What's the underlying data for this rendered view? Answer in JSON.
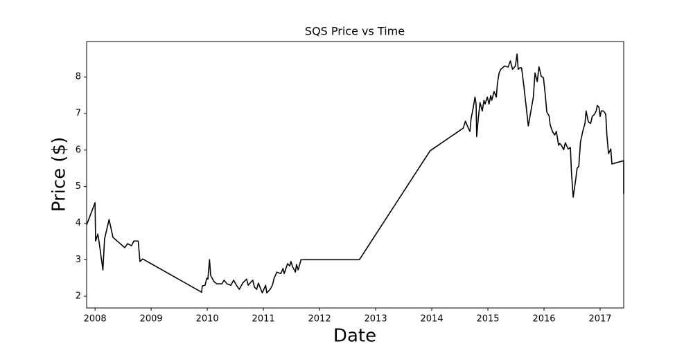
{
  "chart_data": {
    "type": "line",
    "title": "SQS Price vs Time",
    "x_label": "Date",
    "y_label": "Price ($)",
    "color": "#000000",
    "x": [
      2007.85,
      2008.0,
      2008.01,
      2008.05,
      2008.07,
      2008.14,
      2008.17,
      2008.25,
      2008.32,
      2008.53,
      2008.58,
      2008.65,
      2008.69,
      2008.77,
      2008.8,
      2008.85,
      2009.9,
      2009.91,
      2009.96,
      2009.99,
      2010.01,
      2010.04,
      2010.06,
      2010.12,
      2010.17,
      2010.26,
      2010.3,
      2010.35,
      2010.42,
      2010.47,
      2010.52,
      2010.57,
      2010.63,
      2010.7,
      2010.73,
      2010.75,
      2010.81,
      2010.84,
      2010.88,
      2010.91,
      2010.98,
      2011.04,
      2011.06,
      2011.12,
      2011.16,
      2011.19,
      2011.24,
      2011.31,
      2011.35,
      2011.37,
      2011.41,
      2011.43,
      2011.47,
      2011.49,
      2011.52,
      2011.57,
      2011.59,
      2011.62,
      2011.67,
      2011.69,
      2012.71,
      2013.97,
      2014.56,
      2014.58,
      2014.6,
      2014.64,
      2014.68,
      2014.7,
      2014.74,
      2014.77,
      2014.79,
      2014.8,
      2014.83,
      2014.86,
      2014.9,
      2014.93,
      2014.95,
      2014.99,
      2015.02,
      2015.05,
      2015.07,
      2015.11,
      2015.15,
      2015.17,
      2015.2,
      2015.23,
      2015.3,
      2015.36,
      2015.4,
      2015.44,
      2015.49,
      2015.52,
      2015.54,
      2015.57,
      2015.6,
      2015.64,
      2015.72,
      2015.81,
      2015.84,
      2015.88,
      2015.91,
      2015.95,
      2015.99,
      2016.02,
      2016.05,
      2016.09,
      2016.11,
      2016.15,
      2016.19,
      2016.22,
      2016.26,
      2016.28,
      2016.31,
      2016.35,
      2016.38,
      2016.43,
      2016.47,
      2016.49,
      2016.52,
      2016.56,
      2016.59,
      2016.62,
      2016.65,
      2016.69,
      2016.73,
      2016.75,
      2016.79,
      2016.83,
      2016.86,
      2016.9,
      2016.93,
      2016.95,
      2016.98,
      2017.0,
      2017.02,
      2017.06,
      2017.1,
      2017.12,
      2017.15,
      2017.19,
      2017.21,
      2017.42,
      2017.42
    ],
    "values": [
      3.95,
      4.56,
      3.51,
      3.7,
      3.51,
      2.72,
      3.57,
      4.1,
      3.61,
      3.33,
      3.44,
      3.38,
      3.51,
      3.51,
      2.95,
      3.02,
      2.11,
      2.28,
      2.3,
      2.49,
      2.47,
      3.0,
      2.57,
      2.4,
      2.34,
      2.34,
      2.44,
      2.34,
      2.3,
      2.44,
      2.3,
      2.19,
      2.36,
      2.47,
      2.3,
      2.34,
      2.44,
      2.25,
      2.19,
      2.36,
      2.09,
      2.3,
      2.09,
      2.19,
      2.3,
      2.49,
      2.66,
      2.62,
      2.76,
      2.62,
      2.8,
      2.89,
      2.83,
      2.95,
      2.81,
      2.66,
      2.87,
      2.72,
      3.0,
      3.0,
      3.0,
      5.98,
      6.6,
      6.69,
      6.79,
      6.64,
      6.51,
      6.85,
      7.17,
      7.45,
      7.26,
      6.37,
      6.88,
      7.3,
      7.07,
      7.36,
      7.26,
      7.45,
      7.26,
      7.49,
      7.36,
      7.6,
      7.45,
      7.83,
      8.11,
      8.21,
      8.3,
      8.27,
      8.44,
      8.21,
      8.3,
      8.63,
      8.21,
      8.25,
      8.25,
      7.77,
      6.66,
      7.45,
      8.11,
      7.87,
      8.28,
      8.02,
      7.98,
      7.55,
      7.04,
      6.94,
      6.69,
      6.51,
      6.41,
      6.51,
      6.13,
      6.18,
      6.13,
      6.01,
      6.2,
      6.03,
      6.07,
      5.37,
      4.71,
      5.14,
      5.5,
      5.56,
      6.22,
      6.51,
      6.73,
      7.07,
      6.77,
      6.73,
      6.92,
      6.98,
      7.07,
      7.22,
      7.17,
      6.92,
      7.07,
      7.07,
      6.98,
      6.41,
      5.9,
      6.03,
      5.62,
      5.71,
      4.8
    ],
    "xlim": [
      2007.85,
      2017.42
    ],
    "xticks": [
      2008,
      2009,
      2010,
      2011,
      2012,
      2013,
      2014,
      2015,
      2016,
      2017
    ],
    "ylim": [
      1.68,
      8.97
    ],
    "yticks": [
      2,
      3,
      4,
      5,
      6,
      7,
      8
    ]
  }
}
